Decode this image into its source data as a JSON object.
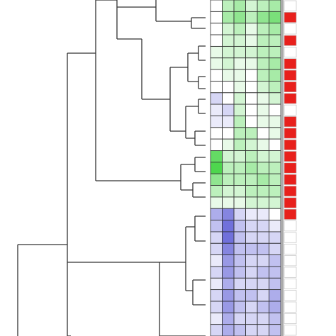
{
  "chart_data": {
    "type": "heatmap",
    "values": [
      [
        0,
        0.3,
        0.4,
        0.2,
        0.3,
        0.4
      ],
      [
        0,
        0.4,
        0.5,
        0.3,
        0.5,
        0.6
      ],
      [
        0,
        0.2,
        0.3,
        0.1,
        0.3,
        0.4
      ],
      [
        0,
        0.2,
        0.2,
        0.1,
        0.3,
        0.3
      ],
      [
        0.1,
        0.2,
        0.2,
        0.2,
        0.3,
        0.3
      ],
      [
        0.1,
        0.2,
        0.1,
        0.1,
        0.3,
        0.4
      ],
      [
        0,
        0.1,
        0.1,
        0,
        0.3,
        0.4
      ],
      [
        0,
        0,
        0.1,
        0,
        0.2,
        0.3
      ],
      [
        -0.2,
        0,
        0.2,
        0,
        0.1,
        0.2
      ],
      [
        -0.1,
        -0.2,
        0.2,
        0,
        0.1,
        0
      ],
      [
        -0.1,
        -0.1,
        0.3,
        0,
        0.1,
        0.1
      ],
      [
        0,
        0,
        0.3,
        0.3,
        0,
        0.1
      ],
      [
        0,
        0.1,
        0.3,
        0.2,
        0.1,
        0
      ],
      [
        0.7,
        0.2,
        0.2,
        0.3,
        0.2,
        0.2
      ],
      [
        0.8,
        0.3,
        0.3,
        0.4,
        0.3,
        0.3
      ],
      [
        0.5,
        0.3,
        0.3,
        0.3,
        0.4,
        0.3
      ],
      [
        0.3,
        0.2,
        0.2,
        0.3,
        0.3,
        0.3
      ],
      [
        0.1,
        0.1,
        0.1,
        0.2,
        0.2,
        0.2
      ],
      [
        -0.4,
        -0.6,
        -0.2,
        -0.1,
        -0.1,
        0
      ],
      [
        -0.3,
        -0.7,
        -0.3,
        -0.2,
        -0.2,
        -0.1
      ],
      [
        -0.2,
        -0.7,
        -0.3,
        -0.2,
        -0.2,
        -0.2
      ],
      [
        -0.2,
        -0.6,
        -0.3,
        -0.3,
        -0.3,
        -0.2
      ],
      [
        -0.1,
        -0.5,
        -0.3,
        -0.2,
        -0.2,
        -0.3
      ],
      [
        -0.2,
        -0.5,
        -0.3,
        -0.2,
        -0.3,
        -0.3
      ],
      [
        -0.1,
        -0.4,
        -0.2,
        -0.2,
        -0.2,
        -0.3
      ],
      [
        -0.2,
        -0.5,
        -0.3,
        -0.3,
        -0.2,
        -0.4
      ],
      [
        -0.2,
        -0.5,
        -0.3,
        -0.2,
        -0.3,
        -0.4
      ],
      [
        -0.1,
        -0.4,
        -0.2,
        -0.2,
        -0.2,
        -0.3
      ],
      [
        -0.2,
        -0.4,
        -0.3,
        -0.2,
        -0.2,
        -0.3
      ]
    ],
    "positive_color": "#22cc22",
    "negative_color": "#3333cc",
    "flags": [
      0,
      1,
      0,
      1,
      0,
      1,
      1,
      1,
      1,
      0,
      1,
      1,
      1,
      1,
      1,
      1,
      1,
      1,
      1,
      0,
      0,
      0,
      0,
      0,
      0,
      0,
      0,
      0,
      0
    ],
    "flag_color": "#e8201c"
  }
}
